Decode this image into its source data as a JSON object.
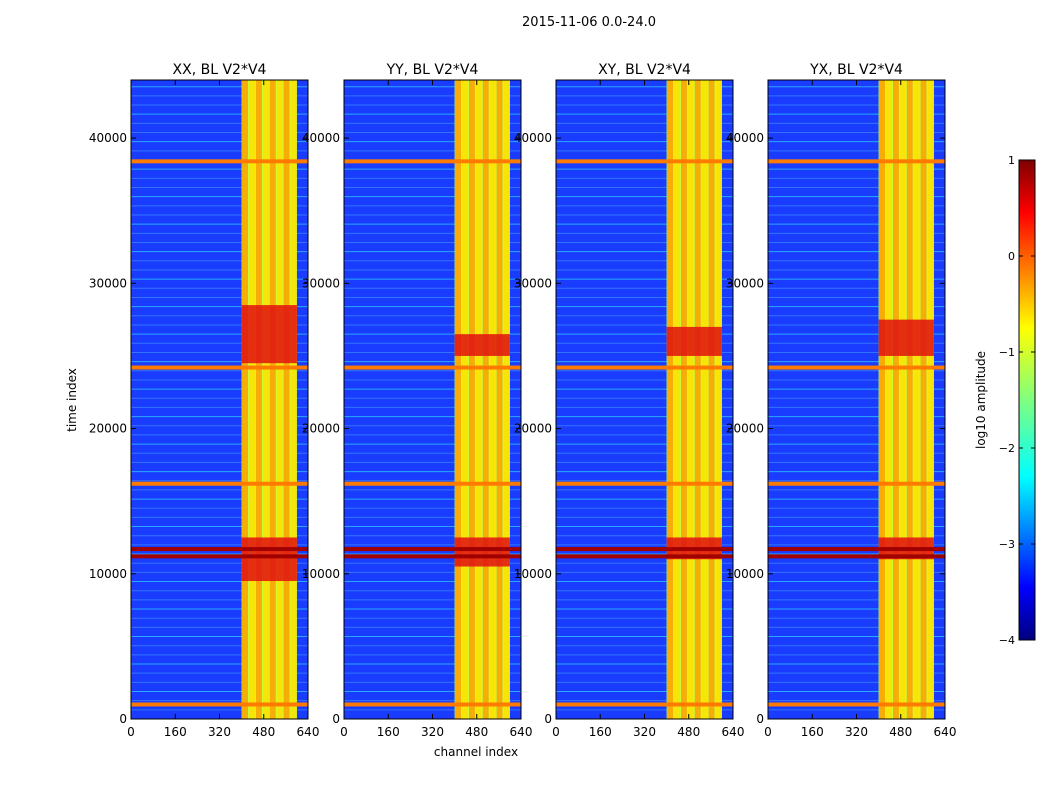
{
  "figure_title": "2015-11-06 0.0-24.0",
  "chart_data": {
    "type": "heatmap",
    "title": "2015-11-06 0.0-24.0",
    "xlabel": "channel index",
    "ylabel": "time index",
    "xlim": [
      0,
      640
    ],
    "ylim": [
      0,
      44000
    ],
    "xticks": [
      0,
      160,
      320,
      480,
      640
    ],
    "yticks": [
      0,
      10000,
      20000,
      30000,
      40000
    ],
    "panels": [
      {
        "title": "XX, BL V2*V4",
        "band": [
          400,
          600
        ],
        "strong_rows": [
          [
            9500,
            12500
          ],
          [
            24500,
            28500
          ]
        ]
      },
      {
        "title": "YY, BL V2*V4",
        "band": [
          400,
          600
        ],
        "strong_rows": [
          [
            10500,
            12500
          ],
          [
            25000,
            26500
          ]
        ]
      },
      {
        "title": "XY, BL V2*V4",
        "band": [
          400,
          600
        ],
        "strong_rows": [
          [
            11000,
            12500
          ],
          [
            25000,
            27000
          ]
        ]
      },
      {
        "title": "YX, BL V2*V4",
        "band": [
          400,
          600
        ],
        "strong_rows": [
          [
            11000,
            12500
          ],
          [
            25000,
            27500
          ]
        ]
      }
    ],
    "horizontal_lines": [
      1000,
      11200,
      11700,
      16200,
      24200,
      38400
    ],
    "colorbar": {
      "label": "log10 amplitude",
      "range": [
        -4,
        1
      ],
      "ticks": [
        1,
        0,
        -1,
        -2,
        -3,
        -4
      ],
      "tick_labels": [
        "1",
        "0",
        "−1",
        "−2",
        "−3",
        "−4"
      ],
      "colormap": "jet"
    }
  }
}
